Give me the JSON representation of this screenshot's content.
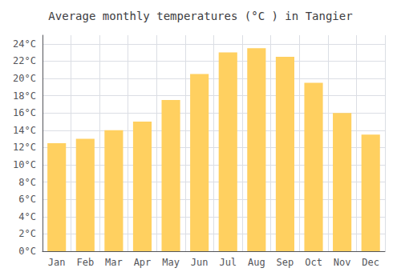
{
  "chart_data": {
    "type": "bar",
    "title": "Average monthly temperatures (°C ) in Tangier",
    "categories": [
      "Jan",
      "Feb",
      "Mar",
      "Apr",
      "May",
      "Jun",
      "Jul",
      "Aug",
      "Sep",
      "Oct",
      "Nov",
      "Dec"
    ],
    "values": [
      12.5,
      13.0,
      14.0,
      15.0,
      17.5,
      20.5,
      23.0,
      23.5,
      22.5,
      19.5,
      16.0,
      13.5
    ],
    "color": "#FFD060",
    "ylim": [
      0,
      25
    ],
    "yticks": [
      {
        "value": 0,
        "label": "0°C"
      },
      {
        "value": 2,
        "label": "2°C"
      },
      {
        "value": 4,
        "label": "4°C"
      },
      {
        "value": 6,
        "label": "6°C"
      },
      {
        "value": 8,
        "label": "8°C"
      },
      {
        "value": 10,
        "label": "10°C"
      },
      {
        "value": 12,
        "label": "12°C"
      },
      {
        "value": 14,
        "label": "14°C"
      },
      {
        "value": 16,
        "label": "16°C"
      },
      {
        "value": 18,
        "label": "18°C"
      },
      {
        "value": 20,
        "label": "20°C"
      },
      {
        "value": 22,
        "label": "22°C"
      },
      {
        "value": 24,
        "label": "24°C"
      }
    ],
    "grid": true
  }
}
